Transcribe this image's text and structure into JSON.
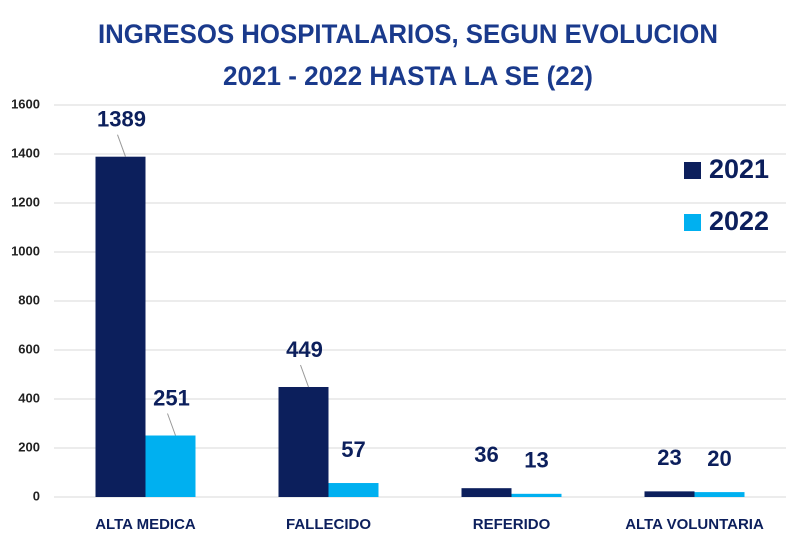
{
  "chart_data": {
    "type": "bar",
    "title": "INGRESOS HOSPITALARIOS, SEGUN EVOLUCION",
    "subtitle": "2021 - 2022 HASTA LA SE (22)",
    "categories": [
      "ALTA MEDICA",
      "FALLECIDO",
      "REFERIDO",
      "ALTA VOLUNTARIA"
    ],
    "series": [
      {
        "name": "2021",
        "color": "#0c1f5c",
        "values": [
          1389,
          449,
          36,
          23
        ]
      },
      {
        "name": "2022",
        "color": "#00b0f0",
        "values": [
          251,
          57,
          13,
          20
        ]
      }
    ],
    "ylim": [
      0,
      1600
    ],
    "yticks": [
      0,
      200,
      400,
      600,
      800,
      1000,
      1200,
      1400,
      1600
    ],
    "grid": true,
    "legend": "upper right"
  }
}
